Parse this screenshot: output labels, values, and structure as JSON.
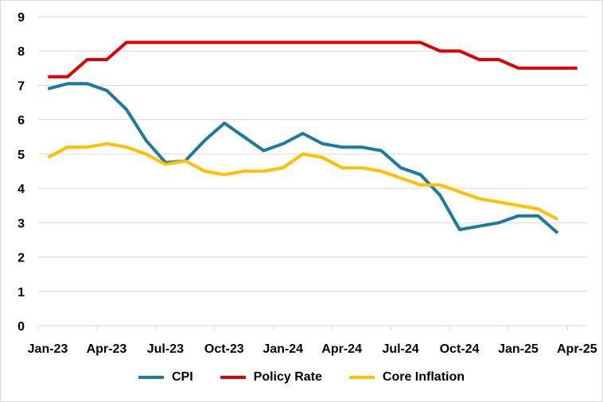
{
  "chart_data": {
    "type": "line",
    "title": "",
    "xlabel": "",
    "ylabel": "",
    "ylim": [
      0,
      9
    ],
    "yticks": [
      "0",
      "1",
      "2",
      "3",
      "4",
      "5",
      "6",
      "7",
      "8",
      "9"
    ],
    "x": [
      "Jan-23",
      "Feb-23",
      "Mar-23",
      "Apr-23",
      "May-23",
      "Jun-23",
      "Jul-23",
      "Aug-23",
      "Sep-23",
      "Oct-23",
      "Nov-23",
      "Dec-23",
      "Jan-24",
      "Feb-24",
      "Mar-24",
      "Apr-24",
      "May-24",
      "Jun-24",
      "Jul-24",
      "Aug-24",
      "Sep-24",
      "Oct-24",
      "Nov-24",
      "Dec-24",
      "Jan-25",
      "Feb-25",
      "Mar-25",
      "Apr-25"
    ],
    "xticks": [
      "Jan-23",
      "Apr-23",
      "Jul-23",
      "Oct-23",
      "Jan-24",
      "Apr-24",
      "Jul-24",
      "Oct-24",
      "Jan-25",
      "Apr-25"
    ],
    "grid": true,
    "legend_position": "bottom",
    "series": [
      {
        "name": "CPI",
        "color": "#1a7aa0",
        "values": [
          6.9,
          7.05,
          7.05,
          6.85,
          6.3,
          5.4,
          4.75,
          4.8,
          5.4,
          5.9,
          5.5,
          5.1,
          5.3,
          5.6,
          5.3,
          5.2,
          5.2,
          5.1,
          4.6,
          4.4,
          3.8,
          2.8,
          2.9,
          3.0,
          3.2,
          3.2,
          2.7,
          null
        ]
      },
      {
        "name": "Policy Rate",
        "color": "#e00000",
        "values": [
          7.25,
          7.25,
          7.75,
          7.75,
          8.25,
          8.25,
          8.25,
          8.25,
          8.25,
          8.25,
          8.25,
          8.25,
          8.25,
          8.25,
          8.25,
          8.25,
          8.25,
          8.25,
          8.25,
          8.25,
          8.0,
          8.0,
          7.75,
          7.75,
          7.5,
          7.5,
          7.5,
          7.5
        ]
      },
      {
        "name": "Core Inflation",
        "color": "#ffc000",
        "values": [
          4.9,
          5.2,
          5.2,
          5.3,
          5.2,
          5.0,
          4.7,
          4.8,
          4.5,
          4.4,
          4.5,
          4.5,
          4.6,
          5.0,
          4.9,
          4.6,
          4.6,
          4.5,
          4.3,
          4.1,
          4.1,
          3.9,
          3.7,
          3.6,
          3.5,
          3.4,
          3.1,
          null
        ]
      }
    ]
  }
}
